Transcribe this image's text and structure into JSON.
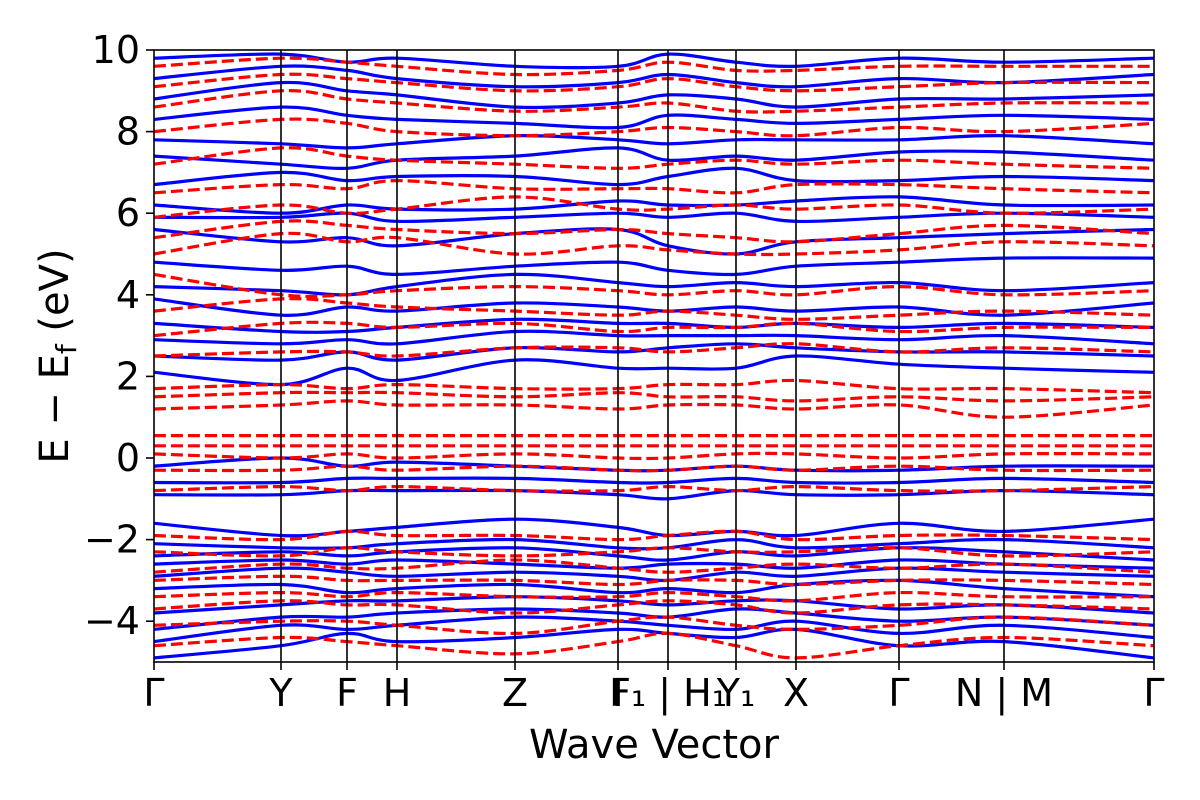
{
  "chart_data": {
    "type": "line",
    "title": "",
    "xlabel": "Wave Vector",
    "ylabel": "E − E",
    "ylabel_sub": "f",
    "ylabel_unit": " (eV)",
    "ylim": [
      -5,
      10
    ],
    "yticks": [
      -4,
      -2,
      0,
      2,
      4,
      6,
      8,
      10
    ],
    "ytick_labels": [
      "−4",
      "−2",
      "0",
      "2",
      "4",
      "6",
      "8",
      "10"
    ],
    "kpath": {
      "x_range": [
        0,
        1
      ],
      "positions": [
        0,
        0.127,
        0.193,
        0.243,
        0.361,
        0.464,
        0.514,
        0.582,
        0.642,
        0.745,
        0.85,
        1.0
      ],
      "labels": [
        "Γ",
        "Y",
        "F",
        "H",
        "Z",
        "I",
        "F₁ | H₁",
        "Y₁",
        "X",
        "Γ",
        "N | M",
        "Γ"
      ]
    },
    "grid": false,
    "legend": "none",
    "series": [
      {
        "style": "solid",
        "color": "#0000ff",
        "bands": [
          [
            -4.9,
            -4.6,
            -4.3,
            -4.5,
            -4.4,
            -4.2,
            -4.3,
            -4.4,
            -4.2,
            -4.6,
            -4.5,
            -4.9
          ],
          [
            -4.5,
            -4.1,
            -4.2,
            -4.1,
            -3.9,
            -4.0,
            -4.1,
            -4.2,
            -4.0,
            -4.3,
            -4.1,
            -4.4
          ],
          [
            -4.2,
            -3.9,
            -3.9,
            -3.8,
            -3.7,
            -3.8,
            -3.9,
            -3.7,
            -3.8,
            -4.0,
            -3.9,
            -4.1
          ],
          [
            -3.8,
            -3.6,
            -3.5,
            -3.5,
            -3.4,
            -3.5,
            -3.6,
            -3.5,
            -3.5,
            -3.7,
            -3.6,
            -3.8
          ],
          [
            -3.2,
            -3.1,
            -3.3,
            -3.2,
            -3.1,
            -3.3,
            -3.2,
            -3.3,
            -3.1,
            -3.0,
            -3.2,
            -3.4
          ],
          [
            -2.9,
            -2.7,
            -2.8,
            -2.9,
            -2.8,
            -2.9,
            -3.0,
            -2.8,
            -2.9,
            -2.7,
            -2.8,
            -2.9
          ],
          [
            -2.6,
            -2.5,
            -2.6,
            -2.5,
            -2.6,
            -2.7,
            -2.6,
            -2.6,
            -2.7,
            -2.5,
            -2.6,
            -2.7
          ],
          [
            -2.4,
            -2.3,
            -2.4,
            -2.3,
            -2.2,
            -2.4,
            -2.5,
            -2.3,
            -2.4,
            -2.2,
            -2.3,
            -2.5
          ],
          [
            -2.1,
            -2.2,
            -2.2,
            -2.1,
            -2.0,
            -2.2,
            -2.2,
            -2.0,
            -2.2,
            -2.1,
            -2.0,
            -2.2
          ],
          [
            -1.6,
            -1.9,
            -1.8,
            -1.7,
            -1.5,
            -1.7,
            -1.9,
            -1.8,
            -1.9,
            -1.6,
            -1.8,
            -1.5
          ],
          [
            -0.9,
            -0.9,
            -0.8,
            -0.8,
            -0.8,
            -0.9,
            -1.0,
            -0.8,
            -0.9,
            -0.9,
            -0.8,
            -0.9
          ],
          [
            -0.6,
            -0.6,
            -0.5,
            -0.5,
            -0.5,
            -0.6,
            -0.6,
            -0.5,
            -0.6,
            -0.6,
            -0.5,
            -0.6
          ],
          [
            -0.2,
            0.0,
            -0.2,
            -0.1,
            -0.2,
            -0.3,
            -0.3,
            -0.2,
            -0.3,
            -0.3,
            -0.2,
            -0.2
          ],
          [
            2.1,
            1.8,
            2.2,
            1.9,
            2.4,
            2.2,
            2.2,
            2.2,
            2.5,
            2.3,
            2.2,
            2.1
          ],
          [
            2.5,
            2.4,
            2.6,
            2.4,
            2.7,
            2.6,
            2.7,
            2.8,
            2.7,
            2.6,
            2.6,
            2.5
          ],
          [
            2.9,
            2.8,
            2.9,
            2.8,
            3.1,
            3.0,
            3.0,
            3.0,
            3.0,
            2.9,
            3.0,
            2.8
          ],
          [
            3.3,
            3.1,
            3.1,
            3.2,
            3.4,
            3.3,
            3.3,
            3.2,
            3.3,
            3.2,
            3.3,
            3.2
          ],
          [
            3.9,
            3.5,
            3.7,
            3.6,
            3.8,
            3.7,
            3.6,
            3.7,
            3.6,
            3.7,
            3.5,
            3.8
          ],
          [
            4.2,
            4.1,
            4.0,
            4.2,
            4.5,
            4.3,
            4.2,
            4.3,
            4.2,
            4.3,
            4.1,
            4.3
          ],
          [
            4.8,
            4.6,
            4.7,
            4.5,
            4.7,
            4.8,
            4.6,
            4.5,
            4.7,
            4.8,
            4.9,
            4.9
          ],
          [
            5.6,
            5.3,
            5.4,
            5.2,
            5.5,
            5.6,
            5.2,
            5.0,
            5.3,
            5.4,
            5.5,
            5.6
          ],
          [
            5.9,
            5.9,
            6.0,
            5.8,
            5.9,
            6.0,
            5.9,
            6.0,
            5.8,
            5.9,
            6.0,
            5.9
          ],
          [
            6.2,
            6.0,
            6.2,
            6.1,
            6.1,
            6.3,
            6.2,
            6.2,
            6.3,
            6.4,
            6.2,
            6.2
          ],
          [
            6.7,
            7.0,
            6.8,
            6.9,
            6.9,
            6.7,
            6.9,
            7.1,
            6.8,
            6.8,
            6.9,
            6.8
          ],
          [
            7.4,
            7.2,
            7.1,
            7.3,
            7.4,
            7.6,
            7.3,
            7.4,
            7.3,
            7.5,
            7.5,
            7.3
          ],
          [
            7.8,
            7.7,
            7.6,
            7.7,
            7.9,
            7.8,
            7.7,
            7.8,
            7.8,
            7.8,
            7.9,
            7.7
          ],
          [
            8.3,
            8.6,
            8.4,
            8.3,
            8.2,
            8.1,
            8.4,
            8.3,
            8.2,
            8.3,
            8.4,
            8.3
          ],
          [
            8.8,
            9.2,
            9.0,
            8.9,
            8.6,
            8.7,
            8.9,
            8.8,
            8.6,
            8.8,
            8.8,
            8.9
          ],
          [
            9.3,
            9.6,
            9.5,
            9.3,
            9.1,
            9.2,
            9.4,
            9.2,
            9.1,
            9.3,
            9.2,
            9.4
          ],
          [
            9.8,
            9.9,
            9.7,
            9.8,
            9.6,
            9.6,
            9.9,
            9.7,
            9.6,
            9.8,
            9.7,
            9.8
          ]
        ]
      },
      {
        "style": "dashed",
        "color": "#ff0000",
        "bands": [
          [
            -4.6,
            -4.4,
            -4.5,
            -4.6,
            -4.8,
            -4.5,
            -4.3,
            -4.6,
            -4.9,
            -4.6,
            -4.4,
            -4.6
          ],
          [
            -4.1,
            -4.0,
            -4.0,
            -4.1,
            -4.3,
            -4.0,
            -3.9,
            -4.1,
            -4.2,
            -4.1,
            -3.9,
            -4.1
          ],
          [
            -3.7,
            -3.5,
            -3.6,
            -3.6,
            -3.8,
            -3.6,
            -3.5,
            -3.6,
            -3.8,
            -3.6,
            -3.6,
            -3.7
          ],
          [
            -3.4,
            -3.3,
            -3.4,
            -3.3,
            -3.4,
            -3.4,
            -3.3,
            -3.4,
            -3.5,
            -3.3,
            -3.4,
            -3.4
          ],
          [
            -3.0,
            -2.9,
            -3.0,
            -3.0,
            -3.0,
            -3.1,
            -3.0,
            -3.0,
            -3.1,
            -3.0,
            -3.0,
            -3.1
          ],
          [
            -2.8,
            -2.6,
            -2.7,
            -2.7,
            -2.5,
            -2.7,
            -2.8,
            -2.7,
            -2.6,
            -2.7,
            -2.6,
            -2.8
          ],
          [
            -2.3,
            -2.4,
            -2.2,
            -2.3,
            -2.4,
            -2.3,
            -2.2,
            -2.3,
            -2.3,
            -2.2,
            -2.4,
            -2.3
          ],
          [
            -1.9,
            -2.0,
            -1.8,
            -1.9,
            -1.9,
            -2.0,
            -1.9,
            -1.8,
            -2.0,
            -1.9,
            -1.9,
            -2.0
          ],
          [
            -0.8,
            -0.7,
            -0.8,
            -0.7,
            -0.8,
            -0.8,
            -0.7,
            -0.8,
            -0.7,
            -0.8,
            -0.8,
            -0.7
          ],
          [
            -0.3,
            -0.3,
            -0.2,
            -0.3,
            -0.2,
            -0.3,
            -0.3,
            -0.2,
            -0.3,
            -0.2,
            -0.3,
            -0.3
          ],
          [
            0.1,
            0.0,
            0.1,
            0.0,
            0.1,
            0.0,
            0.0,
            0.1,
            0.1,
            0.0,
            0.1,
            0.1
          ],
          [
            0.3,
            0.3,
            0.3,
            0.3,
            0.3,
            0.3,
            0.3,
            0.3,
            0.3,
            0.3,
            0.3,
            0.3
          ],
          [
            0.55,
            0.55,
            0.55,
            0.55,
            0.55,
            0.55,
            0.55,
            0.55,
            0.55,
            0.55,
            0.55,
            0.55
          ],
          [
            1.2,
            1.3,
            1.4,
            1.3,
            1.3,
            1.2,
            1.3,
            1.3,
            1.2,
            1.3,
            1.0,
            1.3
          ],
          [
            1.5,
            1.6,
            1.6,
            1.6,
            1.5,
            1.6,
            1.5,
            1.5,
            1.4,
            1.5,
            1.4,
            1.5
          ],
          [
            1.7,
            1.8,
            1.7,
            1.8,
            1.7,
            1.7,
            1.8,
            1.8,
            1.9,
            1.7,
            1.7,
            1.6
          ],
          [
            2.5,
            2.6,
            2.6,
            2.5,
            2.7,
            2.7,
            2.6,
            2.7,
            2.8,
            2.6,
            2.7,
            2.6
          ],
          [
            3.0,
            3.3,
            3.3,
            3.2,
            3.3,
            3.1,
            3.2,
            3.2,
            3.3,
            3.1,
            3.2,
            3.2
          ],
          [
            3.6,
            3.9,
            3.8,
            3.7,
            3.6,
            3.5,
            3.6,
            3.5,
            3.4,
            3.5,
            3.6,
            3.5
          ],
          [
            4.5,
            4.0,
            4.0,
            4.1,
            4.2,
            4.1,
            4.0,
            4.1,
            4.0,
            4.2,
            4.0,
            4.1
          ],
          [
            5.0,
            5.5,
            5.3,
            5.4,
            5.0,
            5.2,
            5.1,
            5.0,
            5.0,
            5.1,
            5.3,
            5.2
          ],
          [
            5.4,
            5.8,
            5.7,
            5.6,
            5.5,
            5.6,
            5.5,
            5.4,
            5.3,
            5.5,
            5.7,
            5.5
          ],
          [
            5.9,
            6.2,
            6.0,
            6.1,
            6.4,
            6.1,
            6.1,
            6.2,
            6.1,
            6.2,
            6.0,
            6.1
          ],
          [
            6.5,
            6.7,
            6.6,
            6.8,
            6.6,
            6.6,
            6.6,
            6.5,
            6.7,
            6.7,
            6.6,
            6.5
          ],
          [
            7.2,
            7.6,
            7.4,
            7.3,
            7.2,
            7.1,
            7.2,
            7.3,
            7.2,
            7.3,
            7.2,
            7.1
          ],
          [
            8.0,
            8.3,
            8.2,
            8.0,
            7.9,
            8.0,
            8.1,
            8.0,
            7.9,
            8.1,
            8.0,
            8.2
          ],
          [
            8.6,
            9.0,
            8.8,
            8.7,
            8.5,
            8.6,
            8.7,
            8.5,
            8.5,
            8.6,
            8.7,
            8.7
          ],
          [
            9.1,
            9.4,
            9.3,
            9.2,
            9.0,
            9.1,
            9.3,
            9.1,
            9.0,
            9.1,
            9.2,
            9.2
          ],
          [
            9.6,
            9.8,
            9.7,
            9.6,
            9.4,
            9.5,
            9.7,
            9.5,
            9.5,
            9.6,
            9.6,
            9.6
          ]
        ]
      }
    ]
  }
}
